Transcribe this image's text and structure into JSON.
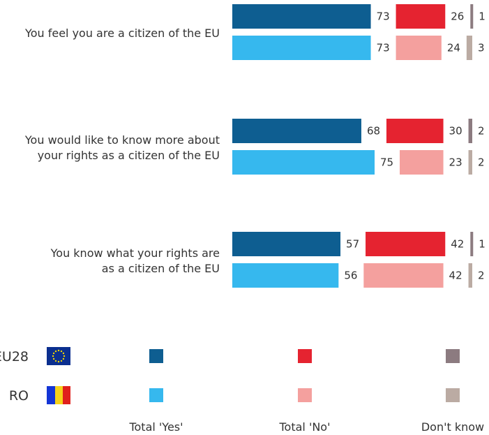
{
  "chart_data": {
    "type": "bar",
    "orientation": "horizontal-stacked-groups",
    "categories": [
      [
        "You feel you are a citizen of the EU"
      ],
      [
        "You would like to know more about",
        "your rights as a citizen of the EU"
      ],
      [
        "You know what your rights are",
        "as a citizen of the EU"
      ]
    ],
    "segments": [
      "Total 'Yes'",
      "Total 'No'",
      "Don't know"
    ],
    "series": [
      {
        "name": "EU28",
        "values": [
          [
            73,
            26,
            1
          ],
          [
            68,
            30,
            2
          ],
          [
            57,
            42,
            1
          ]
        ]
      },
      {
        "name": "RO",
        "values": [
          [
            73,
            24,
            3
          ],
          [
            75,
            23,
            2
          ],
          [
            56,
            42,
            2
          ]
        ]
      }
    ],
    "colors": {
      "EU28": [
        "#0e5e91",
        "#e52330",
        "#8c7b80"
      ],
      "RO": [
        "#36b8ee",
        "#f4a09e",
        "#bbaba3"
      ]
    },
    "legend": {
      "rows": [
        "EU28",
        "RO"
      ],
      "flags": [
        "eu-flag-icon",
        "romania-flag-icon"
      ],
      "columns": [
        "Total 'Yes'",
        "Total 'No'",
        "Don't know"
      ]
    }
  }
}
